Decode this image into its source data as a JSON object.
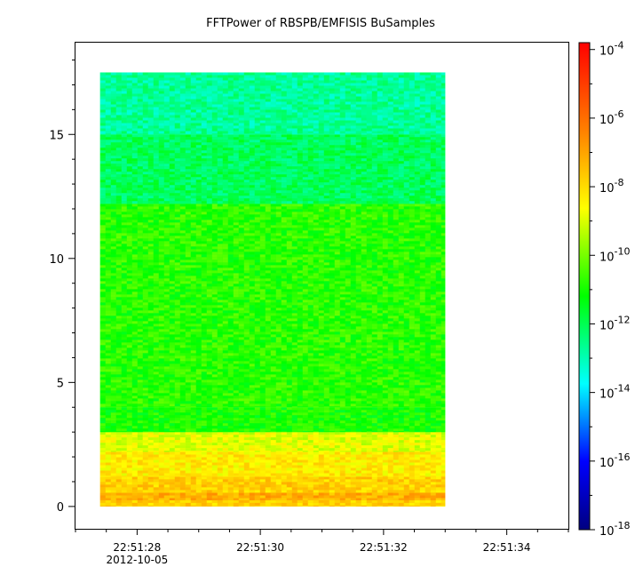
{
  "chart_data": {
    "type": "heatmap",
    "title": "FFTPower of RBSPB/EMFISIS  BuSamples",
    "x_axis": {
      "range_seconds": [
        0,
        8.0
      ],
      "data_range_seconds": [
        0.4,
        6.0
      ],
      "ticks": [
        {
          "value": 1.0,
          "label": "22:51:28",
          "sublabel": "2012-10-05"
        },
        {
          "value": 3.0,
          "label": "22:51:30",
          "sublabel": ""
        },
        {
          "value": 5.0,
          "label": "22:51:32",
          "sublabel": ""
        },
        {
          "value": 7.0,
          "label": "22:51:34",
          "sublabel": ""
        }
      ],
      "minor_step": 0.5
    },
    "y_axis": {
      "range": [
        -0.9,
        18.7
      ],
      "data_range": [
        0,
        17.5
      ],
      "ticks": [
        {
          "value": 0,
          "label": "0"
        },
        {
          "value": 5,
          "label": "5"
        },
        {
          "value": 10,
          "label": "10"
        },
        {
          "value": 15,
          "label": "15"
        }
      ],
      "minor_step": 1
    },
    "colorbar": {
      "scale": "log",
      "range_exponent": [
        -18,
        -3.8
      ],
      "colors": [
        "#000080",
        "#0000ff",
        "#00ffff",
        "#00ff00",
        "#ffff00",
        "#ff8000",
        "#ff0000"
      ],
      "ticks": [
        {
          "exponent": -18,
          "base": "10",
          "exp": "-18"
        },
        {
          "exponent": -16,
          "base": "10",
          "exp": "-16"
        },
        {
          "exponent": -14,
          "base": "10",
          "exp": "-14"
        },
        {
          "exponent": -12,
          "base": "10",
          "exp": "-12"
        },
        {
          "exponent": -10,
          "base": "10",
          "exp": "-10"
        },
        {
          "exponent": -8,
          "base": "10",
          "exp": "-8"
        },
        {
          "exponent": -6,
          "base": "10",
          "exp": "-6"
        },
        {
          "exponent": -4,
          "base": "10",
          "exp": "-4"
        }
      ]
    },
    "bands": [
      {
        "y_range": [
          0,
          0.25
        ],
        "power_exponent": -7.8
      },
      {
        "y_range": [
          0.25,
          0.55
        ],
        "power_exponent": -7.2
      },
      {
        "y_range": [
          0.55,
          1.2
        ],
        "power_exponent": -7.8
      },
      {
        "y_range": [
          1.2,
          2.2
        ],
        "power_exponent": -8.3
      },
      {
        "y_range": [
          2.2,
          3.0
        ],
        "power_exponent": -8.9
      },
      {
        "y_range": [
          3.0,
          4.0
        ],
        "power_exponent": -11.0
      },
      {
        "y_range": [
          4.0,
          12.2
        ],
        "power_exponent": -10.8
      },
      {
        "y_range": [
          12.2,
          15.0
        ],
        "power_exponent": -12.1
      },
      {
        "y_range": [
          15.0,
          17.5
        ],
        "power_exponent": -12.7
      }
    ]
  }
}
